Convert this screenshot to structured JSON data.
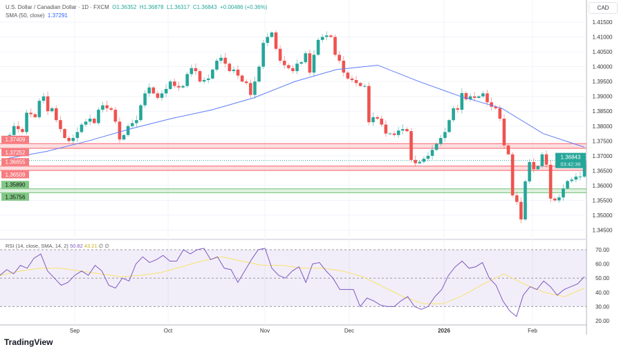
{
  "header": {
    "symbol": "U.S. Dollar / Canadian Dollar · 1D · FXCM",
    "open": "O1.36352",
    "high": "H1.36878",
    "low": "L1.36317",
    "close": "C1.36843",
    "change": "+0.00486 (+0.36%)",
    "sma_label": "SMA (50, close)",
    "sma_value": "1.37291",
    "currency": "CAD"
  },
  "rsi_header": {
    "label": "RSI (14, close, SMA, 14, 2)",
    "rsi": "50.82",
    "sma": "43.21",
    "extra1": "∅",
    "extra2": "∅"
  },
  "colors": {
    "up": "#26a69a",
    "down": "#ef5350",
    "sma": "#5b7cfa",
    "rsi": "#7e57c2",
    "rsi_sma": "#f7e26b",
    "zone_red": "#f77c80",
    "zone_green": "#81c784"
  },
  "brand": "TradingView",
  "chart_data": [
    {
      "type": "candlestick",
      "ylim": [
        1.345,
        1.4175
      ],
      "y_ticks": [
        "1.41500",
        "1.41000",
        "1.40500",
        "1.40000",
        "1.39500",
        "1.39000",
        "1.38500",
        "1.38000",
        "1.37500",
        "1.37000",
        "1.36500",
        "1.36000",
        "1.35500",
        "1.35000",
        "1.34500"
      ],
      "x_ticks": [
        "Sep",
        "Oct",
        "Nov",
        "Dec",
        "2026",
        "Feb"
      ],
      "close": [
        1.3755,
        1.377,
        1.38,
        1.379,
        1.378,
        1.3845,
        1.384,
        1.383,
        1.3885,
        1.39,
        1.385,
        1.386,
        1.382,
        1.379,
        1.376,
        1.375,
        1.376,
        1.378,
        1.3805,
        1.3815,
        1.3825,
        1.381,
        1.3855,
        1.387,
        1.386,
        1.3855,
        1.3815,
        1.3755,
        1.377,
        1.38,
        1.381,
        1.382,
        1.387,
        1.391,
        1.393,
        1.391,
        1.3895,
        1.391,
        1.3925,
        1.395,
        1.3935,
        1.393,
        1.3935,
        1.3975,
        1.3995,
        1.3985,
        1.395,
        1.3955,
        1.396,
        1.399,
        1.402,
        1.403,
        1.401,
        1.3985,
        1.399,
        1.397,
        1.395,
        1.3945,
        1.3905,
        1.395,
        1.4,
        1.408,
        1.41,
        1.4115,
        1.406,
        1.402,
        1.4005,
        1.3995,
        1.3985,
        1.401,
        1.4015,
        1.4045,
        1.398,
        1.404,
        1.409,
        1.41,
        1.4105,
        1.41,
        1.404,
        1.402,
        1.398,
        1.396,
        1.3955,
        1.3945,
        1.3935,
        1.3935,
        1.3813,
        1.383,
        1.3825,
        1.3805,
        1.3775,
        1.3775,
        1.377,
        1.3785,
        1.379,
        1.3783,
        1.3686,
        1.3675,
        1.368,
        1.369,
        1.37,
        1.372,
        1.374,
        1.376,
        1.378,
        1.382,
        1.386,
        1.3855,
        1.3911,
        1.389,
        1.39,
        1.3895,
        1.39,
        1.391,
        1.388,
        1.3865,
        1.386,
        1.3825,
        1.3735,
        1.3705,
        1.3567,
        1.3545,
        1.3486,
        1.3614,
        1.3679,
        1.3655,
        1.3665,
        1.3705,
        1.367,
        1.3556,
        1.355,
        1.356,
        1.359,
        1.3615,
        1.362,
        1.363,
        1.363,
        1.36843
      ],
      "sma50": [
        1.369,
        1.3715,
        1.375,
        1.379,
        1.3825,
        1.3855,
        1.3895,
        1.395,
        1.399,
        1.4005,
        1.395,
        1.39,
        1.386,
        1.3775,
        1.3729
      ],
      "zones": [
        {
          "top": 1.37409,
          "bottom": 1.37252,
          "color": "red",
          "top_label": "1.37409",
          "bottom_label": "1.37252"
        },
        {
          "top": 1.36655,
          "bottom": 1.36509,
          "color": "red",
          "top_label": "1.36655",
          "bottom_label": "1.36509"
        },
        {
          "top": 1.3589,
          "bottom": 1.35756,
          "color": "green",
          "top_label": "1.35890",
          "bottom_label": "1.35756"
        }
      ],
      "last_price": {
        "value": 1.36843,
        "label": "1.36843",
        "countdown": "03:42:36"
      }
    },
    {
      "type": "line",
      "ylim": [
        17,
        75
      ],
      "y_ticks": [
        "70.00",
        "60.00",
        "50.00",
        "40.00",
        "30.00",
        "20.00"
      ],
      "levels": [
        70,
        50,
        30
      ],
      "rsi": [
        52,
        56,
        53,
        59,
        57,
        64,
        67,
        55,
        50,
        45,
        47,
        52,
        55,
        52,
        59,
        55,
        45,
        43,
        50,
        48,
        60,
        65,
        61,
        63,
        66,
        62,
        62,
        70,
        67,
        70,
        71,
        63,
        65,
        57,
        56,
        47,
        55,
        63,
        70,
        71,
        57,
        52,
        50,
        55,
        58,
        47,
        60,
        61,
        55,
        50,
        42,
        42,
        42,
        30,
        36,
        34,
        31,
        30,
        30,
        34,
        37,
        30,
        28,
        30,
        37,
        42,
        52,
        58,
        62,
        57,
        58,
        61,
        50,
        45,
        34,
        27,
        23,
        38,
        44,
        42,
        48,
        44,
        38,
        42,
        44,
        46,
        51
      ],
      "rsi_sma": [
        52,
        55,
        57,
        57,
        55,
        53,
        51,
        52,
        54,
        58,
        62,
        65,
        62,
        59,
        59,
        57,
        57,
        55,
        51,
        44,
        37,
        32,
        32,
        38,
        46,
        53,
        46,
        40,
        37,
        43
      ]
    }
  ]
}
